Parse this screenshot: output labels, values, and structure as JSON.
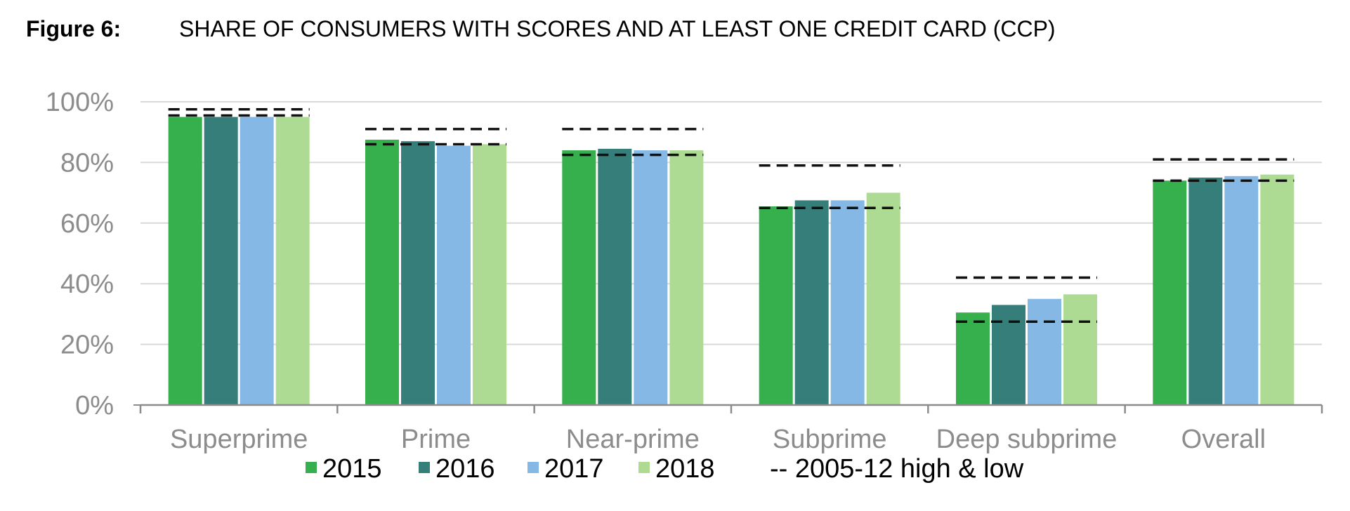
{
  "figure": {
    "label": "Figure 6:",
    "title": "SHARE OF CONSUMERS WITH SCORES AND AT LEAST ONE CREDIT CARD (CCP)"
  },
  "chart_data": {
    "type": "bar",
    "title": "SHARE OF CONSUMERS WITH SCORES AND AT LEAST ONE CREDIT CARD (CCP)",
    "xlabel": "",
    "ylabel": "",
    "ylim": [
      0,
      100
    ],
    "y_ticks": [
      0,
      20,
      40,
      60,
      80,
      100
    ],
    "y_tick_labels": [
      "0%",
      "20%",
      "40%",
      "60%",
      "80%",
      "100%"
    ],
    "grid": true,
    "categories": [
      "Superprime",
      "Prime",
      "Near-prime",
      "Subprime",
      "Deep subprime",
      "Overall"
    ],
    "series": [
      {
        "name": "2015",
        "color": "#35b04d",
        "values": [
          95,
          87.5,
          84,
          65.5,
          30.5,
          74
        ]
      },
      {
        "name": "2016",
        "color": "#367e7a",
        "values": [
          95,
          87,
          84.5,
          67.5,
          33,
          75
        ]
      },
      {
        "name": "2017",
        "color": "#85b8e4",
        "values": [
          95,
          85.5,
          84,
          67.5,
          35,
          75.5
        ]
      },
      {
        "name": "2018",
        "color": "#aedb93",
        "values": [
          95,
          86,
          84,
          70,
          36.5,
          76
        ]
      }
    ],
    "reference_range": {
      "name": "2005-12 high & low",
      "high": [
        97.5,
        91,
        91,
        79,
        42,
        81
      ],
      "low": [
        95.5,
        86,
        82.5,
        65,
        27.5,
        74
      ]
    },
    "legend": {
      "position": "bottom",
      "entries": [
        {
          "label": "2015",
          "color": "#35b04d",
          "marker": "square"
        },
        {
          "label": "2016",
          "color": "#367e7a",
          "marker": "square"
        },
        {
          "label": "2017",
          "color": "#85b8e4",
          "marker": "square"
        },
        {
          "label": "2018",
          "color": "#aedb93",
          "marker": "square"
        },
        {
          "label": "-- 2005-12 high & low",
          "color": "#000000",
          "marker": "none"
        }
      ]
    }
  }
}
